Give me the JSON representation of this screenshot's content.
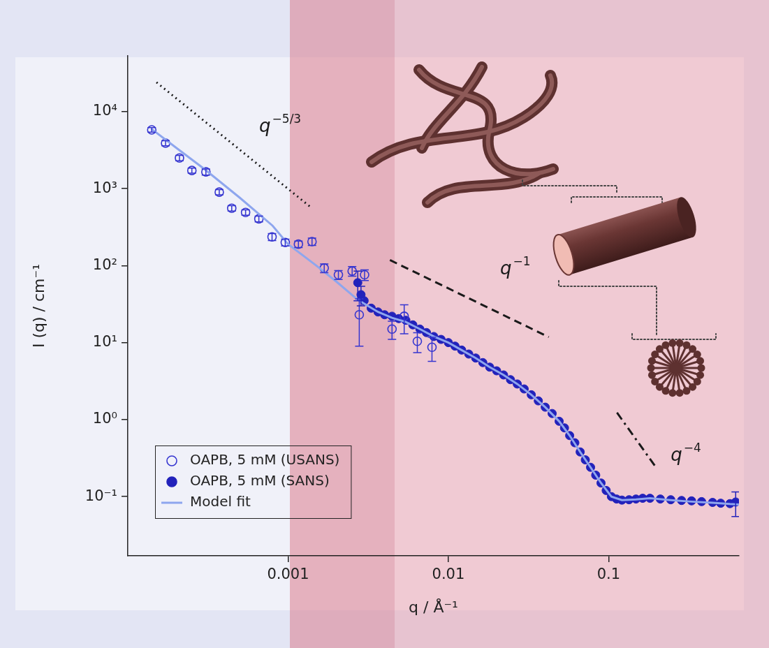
{
  "chart_data": {
    "type": "scatter",
    "log": true,
    "grid": false,
    "legend": "lower left",
    "xlabel": "q / Å⁻¹",
    "ylabel": "I (q) / cm⁻¹",
    "xlim": [
      0.0001,
      0.65
    ],
    "ylim": [
      0.017,
      53000
    ],
    "xticks": [
      0.001,
      0.01,
      0.1
    ],
    "yticks": [
      {
        "value": 0.1,
        "label": "10⁻¹"
      },
      {
        "value": 1,
        "label": "10⁰"
      },
      {
        "value": 10,
        "label": "10¹"
      },
      {
        "value": 100,
        "label": "10²"
      },
      {
        "value": 1000,
        "label": "10³"
      },
      {
        "value": 10000,
        "label": "10⁴"
      }
    ],
    "series": [
      {
        "name": "OAPB, 5 mM (USANS)",
        "color": "#3535d0",
        "marker": "open circle",
        "x": [
          0.000141,
          0.000172,
          0.00021,
          0.000251,
          0.000307,
          0.000372,
          0.000445,
          0.000543,
          0.000657,
          0.000794,
          0.00096,
          0.00116,
          0.00141,
          0.00168,
          0.00206,
          0.00251,
          0.00278,
          0.003,
          0.00445,
          0.0053,
          0.0064,
          0.0079
        ],
        "values": [
          5800,
          3900,
          2500,
          1720,
          1650,
          900,
          556,
          490,
          405,
          236,
          200,
          190,
          205,
          93,
          76,
          85,
          23,
          76,
          15,
          22,
          10.4,
          8.7
        ],
        "error": [
          400,
          300,
          200,
          130,
          150,
          70,
          45,
          40,
          35,
          25,
          20,
          18,
          22,
          12,
          10,
          12,
          14,
          12,
          4,
          9,
          3,
          3
        ]
      },
      {
        "name": "OAPB, 5 mM (SANS)",
        "color": "#2222bb",
        "marker": "filled circle",
        "x": [
          0.00272,
          0.00285,
          0.00298,
          0.0033,
          0.00364,
          0.004,
          0.00445,
          0.0049,
          0.00543,
          0.006,
          0.00664,
          0.0073,
          0.00811,
          0.009,
          0.01,
          0.011,
          0.0121,
          0.0134,
          0.0148,
          0.0164,
          0.0181,
          0.02,
          0.0221,
          0.0244,
          0.0269,
          0.0297,
          0.0329,
          0.0364,
          0.0402,
          0.0444,
          0.0491,
          0.053,
          0.0571,
          0.0615,
          0.0664,
          0.0715,
          0.0771,
          0.083,
          0.0896,
          0.0965,
          0.104,
          0.112,
          0.121,
          0.134,
          0.148,
          0.163,
          0.181,
          0.21,
          0.244,
          0.285,
          0.329,
          0.38,
          0.445,
          0.5,
          0.571,
          0.62
        ],
        "values": [
          60,
          42,
          35,
          28,
          25,
          23,
          22,
          20.5,
          19.5,
          17,
          15,
          13.5,
          12,
          11,
          10,
          9,
          8,
          7.1,
          6.3,
          5.5,
          4.8,
          4.3,
          3.8,
          3.3,
          2.9,
          2.5,
          2.1,
          1.75,
          1.45,
          1.2,
          0.95,
          0.78,
          0.62,
          0.5,
          0.38,
          0.3,
          0.24,
          0.19,
          0.15,
          0.12,
          0.1,
          0.093,
          0.09,
          0.091,
          0.093,
          0.095,
          0.095,
          0.093,
          0.091,
          0.089,
          0.088,
          0.086,
          0.084,
          0.082,
          0.081,
          0.085
        ],
        "error": [
          25,
          12,
          null,
          null,
          null,
          null,
          null,
          null,
          null,
          null,
          null,
          null,
          null,
          null,
          null,
          null,
          null,
          null,
          null,
          null,
          null,
          null,
          null,
          null,
          null,
          null,
          null,
          null,
          null,
          null,
          null,
          null,
          null,
          null,
          null,
          null,
          null,
          null,
          null,
          null,
          null,
          null,
          null,
          null,
          null,
          null,
          null,
          null,
          null,
          null,
          null,
          null,
          null,
          null,
          null,
          0.03
        ]
      },
      {
        "name": "Model fit",
        "type": "line",
        "color": "#8ea6ee",
        "line_style": "solid",
        "x": [
          0.00014,
          0.0002,
          0.0003,
          0.0005,
          0.0008,
          0.001,
          0.0015,
          0.002,
          0.00272,
          0.00364,
          0.00445,
          0.00543,
          0.00664,
          0.00811,
          0.01,
          0.0121,
          0.0148,
          0.0181,
          0.0221,
          0.0269,
          0.0329,
          0.0402,
          0.0491,
          0.0571,
          0.0664,
          0.0771,
          0.0896,
          0.104,
          0.121,
          0.148,
          0.181,
          0.244,
          0.329,
          0.445,
          0.571,
          0.65
        ],
        "values": [
          6000,
          3400,
          1800,
          760,
          330,
          190,
          100,
          62,
          36,
          25,
          21,
          18.5,
          15,
          12,
          10,
          8,
          6.3,
          4.8,
          3.8,
          2.9,
          2.1,
          1.45,
          0.95,
          0.62,
          0.38,
          0.24,
          0.15,
          0.1,
          0.09,
          0.092,
          0.095,
          0.09,
          0.086,
          0.083,
          0.08,
          0.079
        ]
      }
    ],
    "annotations": [
      {
        "text": "q",
        "superscript": "−5/3",
        "x": 0.00066,
        "y": 6600,
        "line_style": "dotted",
        "line_x": [
          0.000151,
          0.00141
        ],
        "line_y": [
          24000,
          556
        ]
      },
      {
        "text": "q",
        "superscript": "−1",
        "x": 0.021,
        "y": 92,
        "line_style": "dashed",
        "line_x": [
          0.00432,
          0.0423
        ],
        "line_y": [
          118,
          11.8
        ]
      },
      {
        "text": "q",
        "superscript": "−4",
        "x": 0.244,
        "y": 0.35,
        "line_style": "dashdot",
        "line_x": [
          0.1127,
          0.2
        ],
        "line_y": [
          1.23,
          0.23
        ]
      }
    ]
  }
}
